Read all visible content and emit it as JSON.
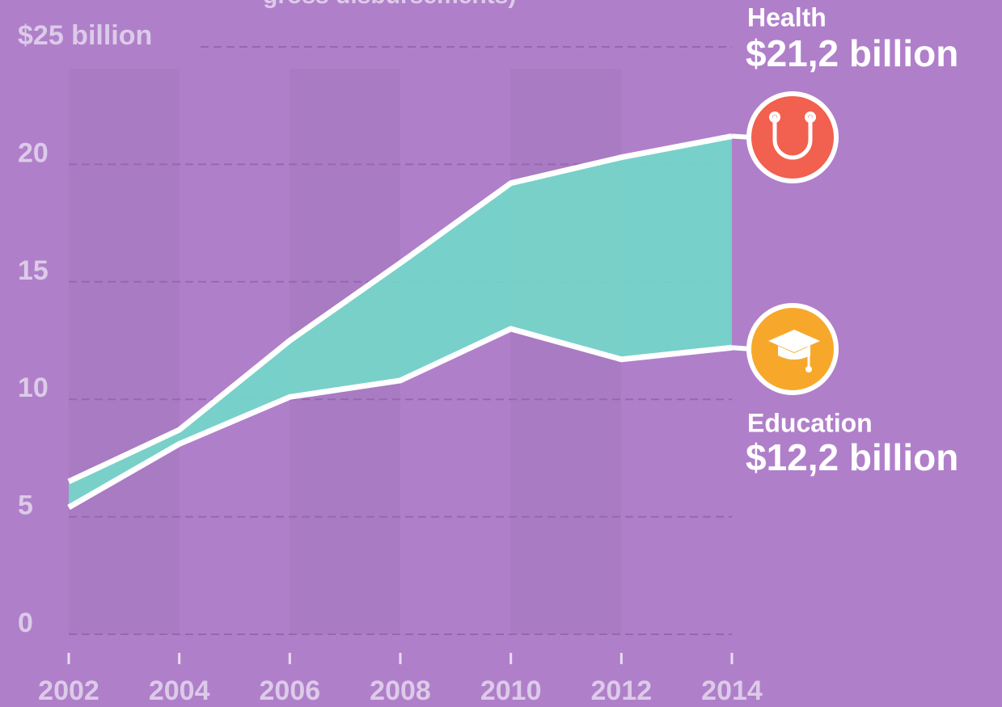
{
  "chart_data": {
    "type": "area_between",
    "subtitle": "gross disbursements)",
    "x": [
      2002,
      2004,
      2006,
      2008,
      2010,
      2012,
      2014
    ],
    "xlim": [
      2002,
      2014
    ],
    "xticks": [
      2002,
      2004,
      2006,
      2008,
      2010,
      2012,
      2014
    ],
    "ylim": [
      0,
      25
    ],
    "yticks": [
      0,
      5,
      10,
      15,
      20,
      {
        "value": 25,
        "label": "$25 billion"
      }
    ],
    "grid": true,
    "fill_color": "#72d9ca",
    "series": [
      {
        "name": "Health",
        "end_label": "$21,2 billion",
        "color": "#ffffff",
        "icon_color": "#f2604f",
        "values": [
          6.5,
          8.7,
          12.5,
          15.8,
          19.2,
          20.3,
          21.2
        ]
      },
      {
        "name": "Education",
        "end_label": "$12,2 billion",
        "color": "#ffffff",
        "icon_color": "#f7a82b",
        "values": [
          5.4,
          8.1,
          10.1,
          10.8,
          13.0,
          11.7,
          12.2
        ]
      }
    ]
  }
}
